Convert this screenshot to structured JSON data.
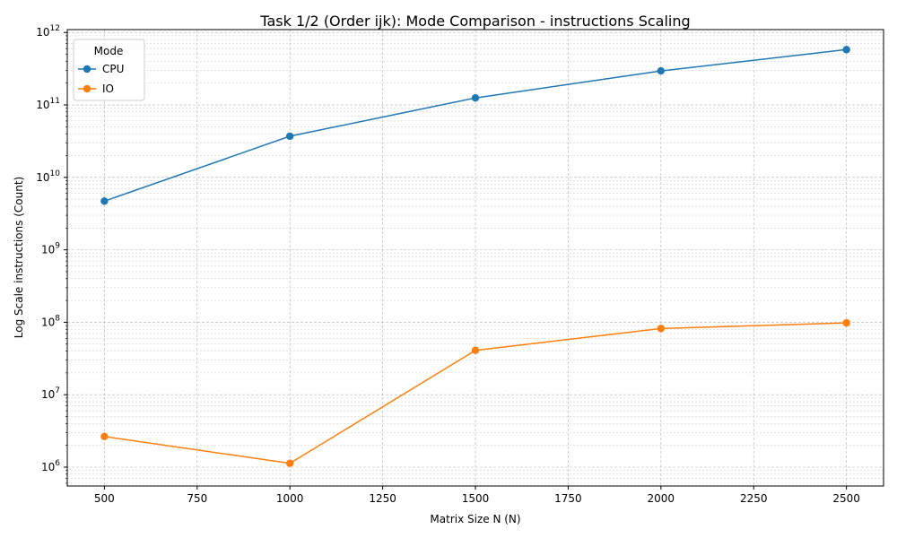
{
  "chart_data": {
    "type": "line",
    "title": "Task 1/2 (Order ijk): Mode Comparison - instructions Scaling",
    "xlabel": "Matrix Size N (N)",
    "ylabel": "Log Scale instructions (Count)",
    "x": [
      500,
      1000,
      1500,
      2000,
      2500
    ],
    "x_ticks": [
      "500",
      "750",
      "1000",
      "1250",
      "1500",
      "1750",
      "2000",
      "2250",
      "2500"
    ],
    "y_ticks": [
      "10^6",
      "10^7",
      "10^8",
      "10^9",
      "10^10",
      "10^11",
      "10^12"
    ],
    "xlim": [
      400,
      2600
    ],
    "ylim_log10": [
      5.74,
      12.04
    ],
    "yscale": "log",
    "grid": true,
    "legend": {
      "title": "Mode",
      "placement": "upper-left"
    },
    "series": [
      {
        "name": "CPU",
        "color": "#1f77b4",
        "values": [
          4700000000,
          37000000000,
          125000000000,
          295000000000,
          580000000000
        ]
      },
      {
        "name": "IO",
        "color": "#ff7f0e",
        "values": [
          2650000,
          1130000,
          41000000,
          82000000,
          98000000
        ]
      }
    ]
  }
}
